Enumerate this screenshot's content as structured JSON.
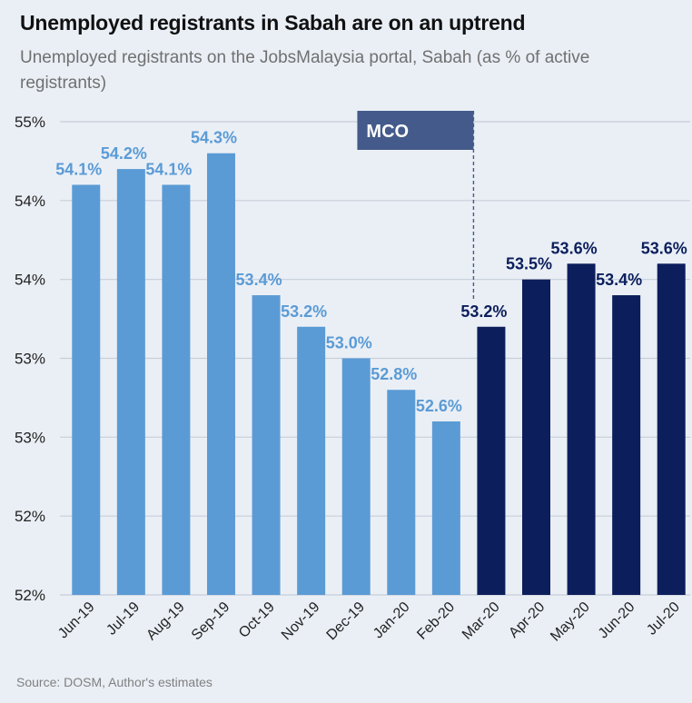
{
  "title": "Unemployed registrants in Sabah are on an uptrend",
  "subtitle": "Unemployed registrants on the JobsMalaysia portal, Sabah (as % of active registrants)",
  "source": "Source: DOSM, Author's estimates",
  "colors": {
    "pre": "#5b9bd5",
    "post": "#0c1f5c",
    "annotation": "#445a8a",
    "grid": "#c8ced8",
    "background": "#eaeff6"
  },
  "chart_data": {
    "type": "bar",
    "title": "Unemployed registrants in Sabah are on an uptrend",
    "categories": [
      "Jun-19",
      "Jul-19",
      "Aug-19",
      "Sep-19",
      "Oct-19",
      "Nov-19",
      "Dec-19",
      "Jan-20",
      "Feb-20",
      "Mar-20",
      "Apr-20",
      "May-20",
      "Jun-20",
      "Jul-20"
    ],
    "values": [
      54.1,
      54.2,
      54.1,
      54.3,
      53.4,
      53.2,
      53.0,
      52.8,
      52.6,
      53.2,
      53.5,
      53.6,
      53.4,
      53.6
    ],
    "data_labels": [
      "54.1%",
      "54.2%",
      "54.1%",
      "54.3%",
      "53.4%",
      "53.2%",
      "53.0%",
      "52.8%",
      "52.6%",
      "53.2%",
      "53.5%",
      "53.6%",
      "53.4%",
      "53.6%"
    ],
    "bar_groups": [
      "pre",
      "pre",
      "pre",
      "pre",
      "pre",
      "pre",
      "pre",
      "pre",
      "pre",
      "post",
      "post",
      "post",
      "post",
      "post"
    ],
    "ylim": [
      51.5,
      54.5
    ],
    "yticks": [
      51.5,
      52.0,
      52.5,
      53.0,
      53.5,
      54.0,
      54.5
    ],
    "ytick_labels": [
      "52%",
      "52%",
      "53%",
      "53%",
      "54%",
      "54%",
      "55%"
    ],
    "grid": true,
    "xlabel": "",
    "ylabel": "",
    "annotation": {
      "label": "MCO",
      "at_category": "Mar-20"
    }
  }
}
